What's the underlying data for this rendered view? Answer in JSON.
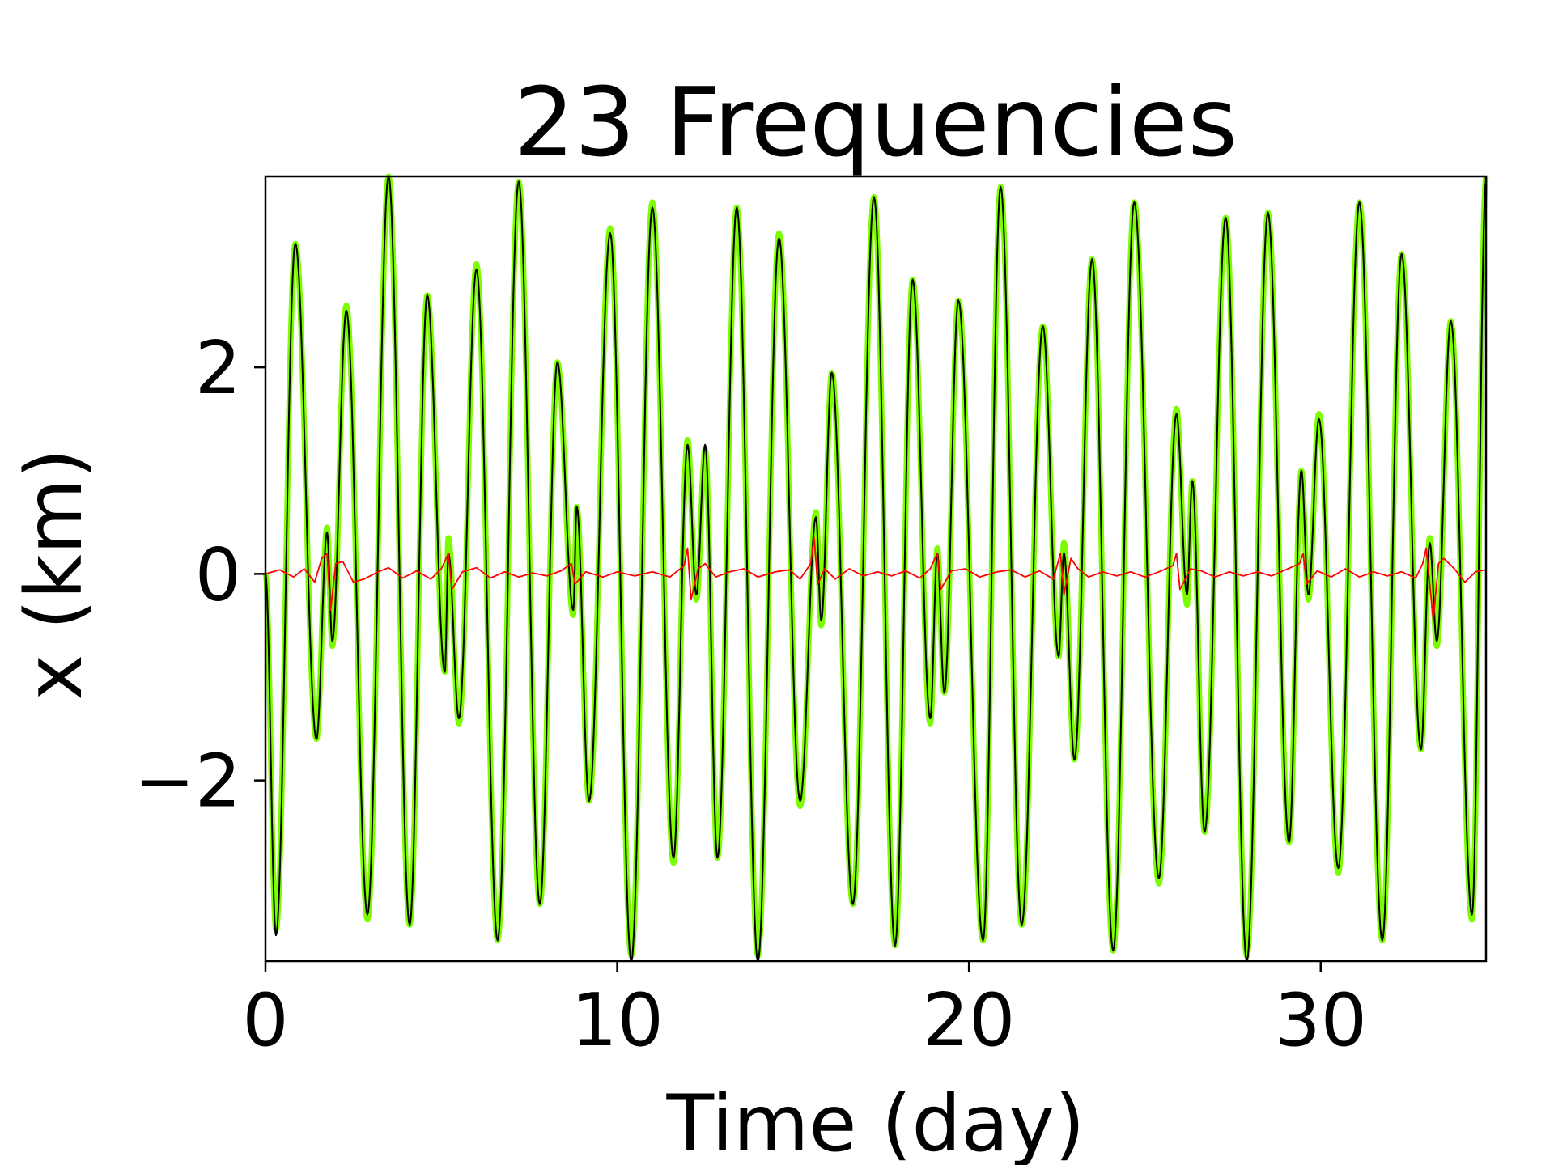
{
  "chart_data": {
    "type": "line",
    "title": "23 Frequencies",
    "xlabel": "Time (day)",
    "ylabel": "x (km)",
    "xlim": [
      0,
      34.7
    ],
    "ylim": [
      -3.75,
      3.85
    ],
    "xticks": [
      0,
      10,
      20,
      30
    ],
    "xtick_labels": [
      "0",
      "10",
      "20",
      "30"
    ],
    "yticks": [
      -2,
      0,
      2
    ],
    "ytick_labels": [
      "−2",
      "0",
      "2"
    ],
    "grid": false,
    "legend": "none",
    "series": [
      {
        "role": "reference",
        "color": "#7cfc00",
        "extrema": [
          [
            0,
            0
          ],
          [
            0.3,
            -3.45
          ],
          [
            0.85,
            3.2
          ],
          [
            1.45,
            -1.6
          ],
          [
            1.75,
            0.45
          ],
          [
            1.9,
            -0.7
          ],
          [
            2.3,
            2.6
          ],
          [
            2.9,
            -3.35
          ],
          [
            3.5,
            3.85
          ],
          [
            4.1,
            -3.4
          ],
          [
            4.6,
            2.7
          ],
          [
            5.1,
            -0.95
          ],
          [
            5.2,
            0.35
          ],
          [
            5.5,
            -1.45
          ],
          [
            6.0,
            3.0
          ],
          [
            6.6,
            -3.55
          ],
          [
            7.2,
            3.8
          ],
          [
            7.8,
            -3.2
          ],
          [
            8.3,
            2.05
          ],
          [
            8.75,
            -0.4
          ],
          [
            8.85,
            0.65
          ],
          [
            9.2,
            -2.2
          ],
          [
            9.8,
            3.35
          ],
          [
            10.4,
            -3.7
          ],
          [
            11.0,
            3.6
          ],
          [
            11.6,
            -2.8
          ],
          [
            12.0,
            1.3
          ],
          [
            12.25,
            -0.25
          ],
          [
            12.5,
            1.2
          ],
          [
            12.85,
            -2.75
          ],
          [
            13.4,
            3.55
          ],
          [
            14.0,
            -3.7
          ],
          [
            14.6,
            3.3
          ],
          [
            15.2,
            -2.25
          ],
          [
            15.65,
            0.6
          ],
          [
            15.8,
            -0.5
          ],
          [
            16.1,
            1.95
          ],
          [
            16.7,
            -3.2
          ],
          [
            17.3,
            3.65
          ],
          [
            17.9,
            -3.6
          ],
          [
            18.4,
            2.85
          ],
          [
            18.9,
            -1.45
          ],
          [
            19.1,
            0.25
          ],
          [
            19.3,
            -1.15
          ],
          [
            19.7,
            2.65
          ],
          [
            20.4,
            -3.55
          ],
          [
            20.9,
            3.75
          ],
          [
            21.5,
            -3.4
          ],
          [
            22.1,
            2.4
          ],
          [
            22.55,
            -0.8
          ],
          [
            22.7,
            0.3
          ],
          [
            23.0,
            -1.8
          ],
          [
            23.5,
            3.05
          ],
          [
            24.1,
            -3.65
          ],
          [
            24.7,
            3.6
          ],
          [
            25.4,
            -3.0
          ],
          [
            25.9,
            1.6
          ],
          [
            26.2,
            -0.3
          ],
          [
            26.35,
            0.9
          ],
          [
            26.7,
            -2.5
          ],
          [
            27.3,
            3.45
          ],
          [
            27.9,
            -3.7
          ],
          [
            28.5,
            3.5
          ],
          [
            29.1,
            -2.6
          ],
          [
            29.45,
            1.0
          ],
          [
            29.65,
            -0.25
          ],
          [
            29.95,
            1.55
          ],
          [
            30.5,
            -2.9
          ],
          [
            31.1,
            3.6
          ],
          [
            31.75,
            -3.55
          ],
          [
            32.3,
            3.1
          ],
          [
            32.85,
            -1.7
          ],
          [
            33.1,
            0.35
          ],
          [
            33.3,
            -0.7
          ],
          [
            33.7,
            2.45
          ],
          [
            34.3,
            -3.35
          ],
          [
            34.7,
            3.85
          ]
        ]
      },
      {
        "role": "approximation",
        "color": "#000000",
        "extrema": [
          [
            0,
            0
          ],
          [
            0.3,
            -3.5
          ],
          [
            0.85,
            3.2
          ],
          [
            1.45,
            -1.6
          ],
          [
            1.75,
            0.4
          ],
          [
            1.9,
            -0.65
          ],
          [
            2.3,
            2.55
          ],
          [
            2.9,
            -3.3
          ],
          [
            3.5,
            3.85
          ],
          [
            4.1,
            -3.4
          ],
          [
            4.6,
            2.7
          ],
          [
            5.1,
            -0.95
          ],
          [
            5.2,
            0.2
          ],
          [
            5.5,
            -1.4
          ],
          [
            6.0,
            2.95
          ],
          [
            6.6,
            -3.55
          ],
          [
            7.2,
            3.8
          ],
          [
            7.8,
            -3.2
          ],
          [
            8.3,
            2.05
          ],
          [
            8.75,
            -0.35
          ],
          [
            8.85,
            0.65
          ],
          [
            9.2,
            -2.2
          ],
          [
            9.8,
            3.3
          ],
          [
            10.4,
            -3.75
          ],
          [
            11.0,
            3.55
          ],
          [
            11.6,
            -2.75
          ],
          [
            12.0,
            1.25
          ],
          [
            12.25,
            -0.2
          ],
          [
            12.5,
            1.25
          ],
          [
            12.85,
            -2.75
          ],
          [
            13.4,
            3.55
          ],
          [
            14.0,
            -3.75
          ],
          [
            14.6,
            3.25
          ],
          [
            15.2,
            -2.2
          ],
          [
            15.65,
            0.55
          ],
          [
            15.8,
            -0.45
          ],
          [
            16.1,
            1.95
          ],
          [
            16.7,
            -3.2
          ],
          [
            17.3,
            3.65
          ],
          [
            17.9,
            -3.6
          ],
          [
            18.4,
            2.85
          ],
          [
            18.9,
            -1.4
          ],
          [
            19.1,
            0.2
          ],
          [
            19.3,
            -1.15
          ],
          [
            19.7,
            2.65
          ],
          [
            20.4,
            -3.55
          ],
          [
            20.9,
            3.75
          ],
          [
            21.5,
            -3.4
          ],
          [
            22.1,
            2.4
          ],
          [
            22.55,
            -0.8
          ],
          [
            22.7,
            0.2
          ],
          [
            23.0,
            -1.8
          ],
          [
            23.5,
            3.05
          ],
          [
            24.1,
            -3.65
          ],
          [
            24.7,
            3.6
          ],
          [
            25.4,
            -2.95
          ],
          [
            25.9,
            1.55
          ],
          [
            26.2,
            -0.2
          ],
          [
            26.35,
            0.9
          ],
          [
            26.7,
            -2.5
          ],
          [
            27.3,
            3.45
          ],
          [
            27.9,
            -3.75
          ],
          [
            28.5,
            3.5
          ],
          [
            29.1,
            -2.6
          ],
          [
            29.45,
            1.0
          ],
          [
            29.65,
            -0.2
          ],
          [
            29.95,
            1.5
          ],
          [
            30.5,
            -2.85
          ],
          [
            31.1,
            3.6
          ],
          [
            31.75,
            -3.55
          ],
          [
            32.3,
            3.1
          ],
          [
            32.85,
            -1.7
          ],
          [
            33.1,
            0.3
          ],
          [
            33.3,
            -0.65
          ],
          [
            33.7,
            2.45
          ],
          [
            34.3,
            -3.3
          ],
          [
            34.7,
            3.8
          ]
        ]
      },
      {
        "role": "error",
        "color": "#ff0000",
        "points": [
          [
            0,
            0
          ],
          [
            0.4,
            0.04
          ],
          [
            0.8,
            -0.03
          ],
          [
            1.1,
            0.05
          ],
          [
            1.4,
            -0.08
          ],
          [
            1.6,
            0.15
          ],
          [
            1.75,
            0.2
          ],
          [
            1.85,
            -0.35
          ],
          [
            2.0,
            0.1
          ],
          [
            2.2,
            0.12
          ],
          [
            2.5,
            -0.08
          ],
          [
            2.8,
            -0.05
          ],
          [
            3.2,
            0.02
          ],
          [
            3.5,
            0.06
          ],
          [
            3.9,
            -0.04
          ],
          [
            4.3,
            0.03
          ],
          [
            4.7,
            -0.05
          ],
          [
            5.0,
            0.05
          ],
          [
            5.2,
            0.2
          ],
          [
            5.3,
            -0.15
          ],
          [
            5.6,
            0.02
          ],
          [
            6.0,
            0.06
          ],
          [
            6.4,
            -0.04
          ],
          [
            6.8,
            0.02
          ],
          [
            7.2,
            -0.03
          ],
          [
            7.6,
            0.01
          ],
          [
            8.0,
            -0.02
          ],
          [
            8.4,
            0.03
          ],
          [
            8.7,
            0.1
          ],
          [
            8.8,
            -0.1
          ],
          [
            9.1,
            0.02
          ],
          [
            9.6,
            -0.03
          ],
          [
            10.0,
            0.02
          ],
          [
            10.5,
            -0.02
          ],
          [
            11.0,
            0.02
          ],
          [
            11.5,
            -0.03
          ],
          [
            11.9,
            0.08
          ],
          [
            12.0,
            0.25
          ],
          [
            12.1,
            -0.25
          ],
          [
            12.3,
            0.05
          ],
          [
            12.5,
            0.1
          ],
          [
            12.8,
            -0.03
          ],
          [
            13.2,
            0.02
          ],
          [
            13.6,
            0.05
          ],
          [
            14.0,
            -0.03
          ],
          [
            14.5,
            0.02
          ],
          [
            14.9,
            0.04
          ],
          [
            15.2,
            -0.05
          ],
          [
            15.5,
            0.1
          ],
          [
            15.6,
            0.35
          ],
          [
            15.7,
            -0.1
          ],
          [
            15.9,
            0.05
          ],
          [
            16.2,
            -0.05
          ],
          [
            16.6,
            0.05
          ],
          [
            17.0,
            -0.02
          ],
          [
            17.4,
            0.02
          ],
          [
            17.8,
            -0.02
          ],
          [
            18.2,
            0.03
          ],
          [
            18.6,
            -0.04
          ],
          [
            18.9,
            0.05
          ],
          [
            19.1,
            0.2
          ],
          [
            19.2,
            -0.15
          ],
          [
            19.5,
            0.03
          ],
          [
            19.9,
            0.05
          ],
          [
            20.3,
            -0.03
          ],
          [
            20.8,
            0.02
          ],
          [
            21.2,
            0.04
          ],
          [
            21.6,
            -0.03
          ],
          [
            22.0,
            0.03
          ],
          [
            22.4,
            -0.05
          ],
          [
            22.6,
            0.2
          ],
          [
            22.7,
            -0.2
          ],
          [
            22.9,
            0.15
          ],
          [
            23.1,
            0.05
          ],
          [
            23.4,
            -0.03
          ],
          [
            23.8,
            0.02
          ],
          [
            24.2,
            -0.02
          ],
          [
            24.6,
            0.02
          ],
          [
            25.0,
            -0.03
          ],
          [
            25.4,
            0.02
          ],
          [
            25.8,
            0.08
          ],
          [
            25.9,
            0.2
          ],
          [
            26.0,
            -0.15
          ],
          [
            26.3,
            0.05
          ],
          [
            26.6,
            0.03
          ],
          [
            27.0,
            -0.03
          ],
          [
            27.4,
            0.02
          ],
          [
            27.8,
            -0.02
          ],
          [
            28.2,
            0.02
          ],
          [
            28.6,
            -0.02
          ],
          [
            29.0,
            0.04
          ],
          [
            29.4,
            0.1
          ],
          [
            29.5,
            0.2
          ],
          [
            29.6,
            -0.1
          ],
          [
            29.9,
            0.03
          ],
          [
            30.3,
            -0.03
          ],
          [
            30.7,
            0.05
          ],
          [
            31.1,
            -0.03
          ],
          [
            31.5,
            0.02
          ],
          [
            31.9,
            -0.02
          ],
          [
            32.3,
            0.02
          ],
          [
            32.7,
            -0.04
          ],
          [
            32.9,
            0.1
          ],
          [
            33.0,
            0.25
          ],
          [
            33.2,
            -0.45
          ],
          [
            33.35,
            0.1
          ],
          [
            33.5,
            0.15
          ],
          [
            33.8,
            0.05
          ],
          [
            34.1,
            -0.08
          ],
          [
            34.4,
            0.02
          ],
          [
            34.7,
            0.04
          ]
        ]
      }
    ]
  }
}
